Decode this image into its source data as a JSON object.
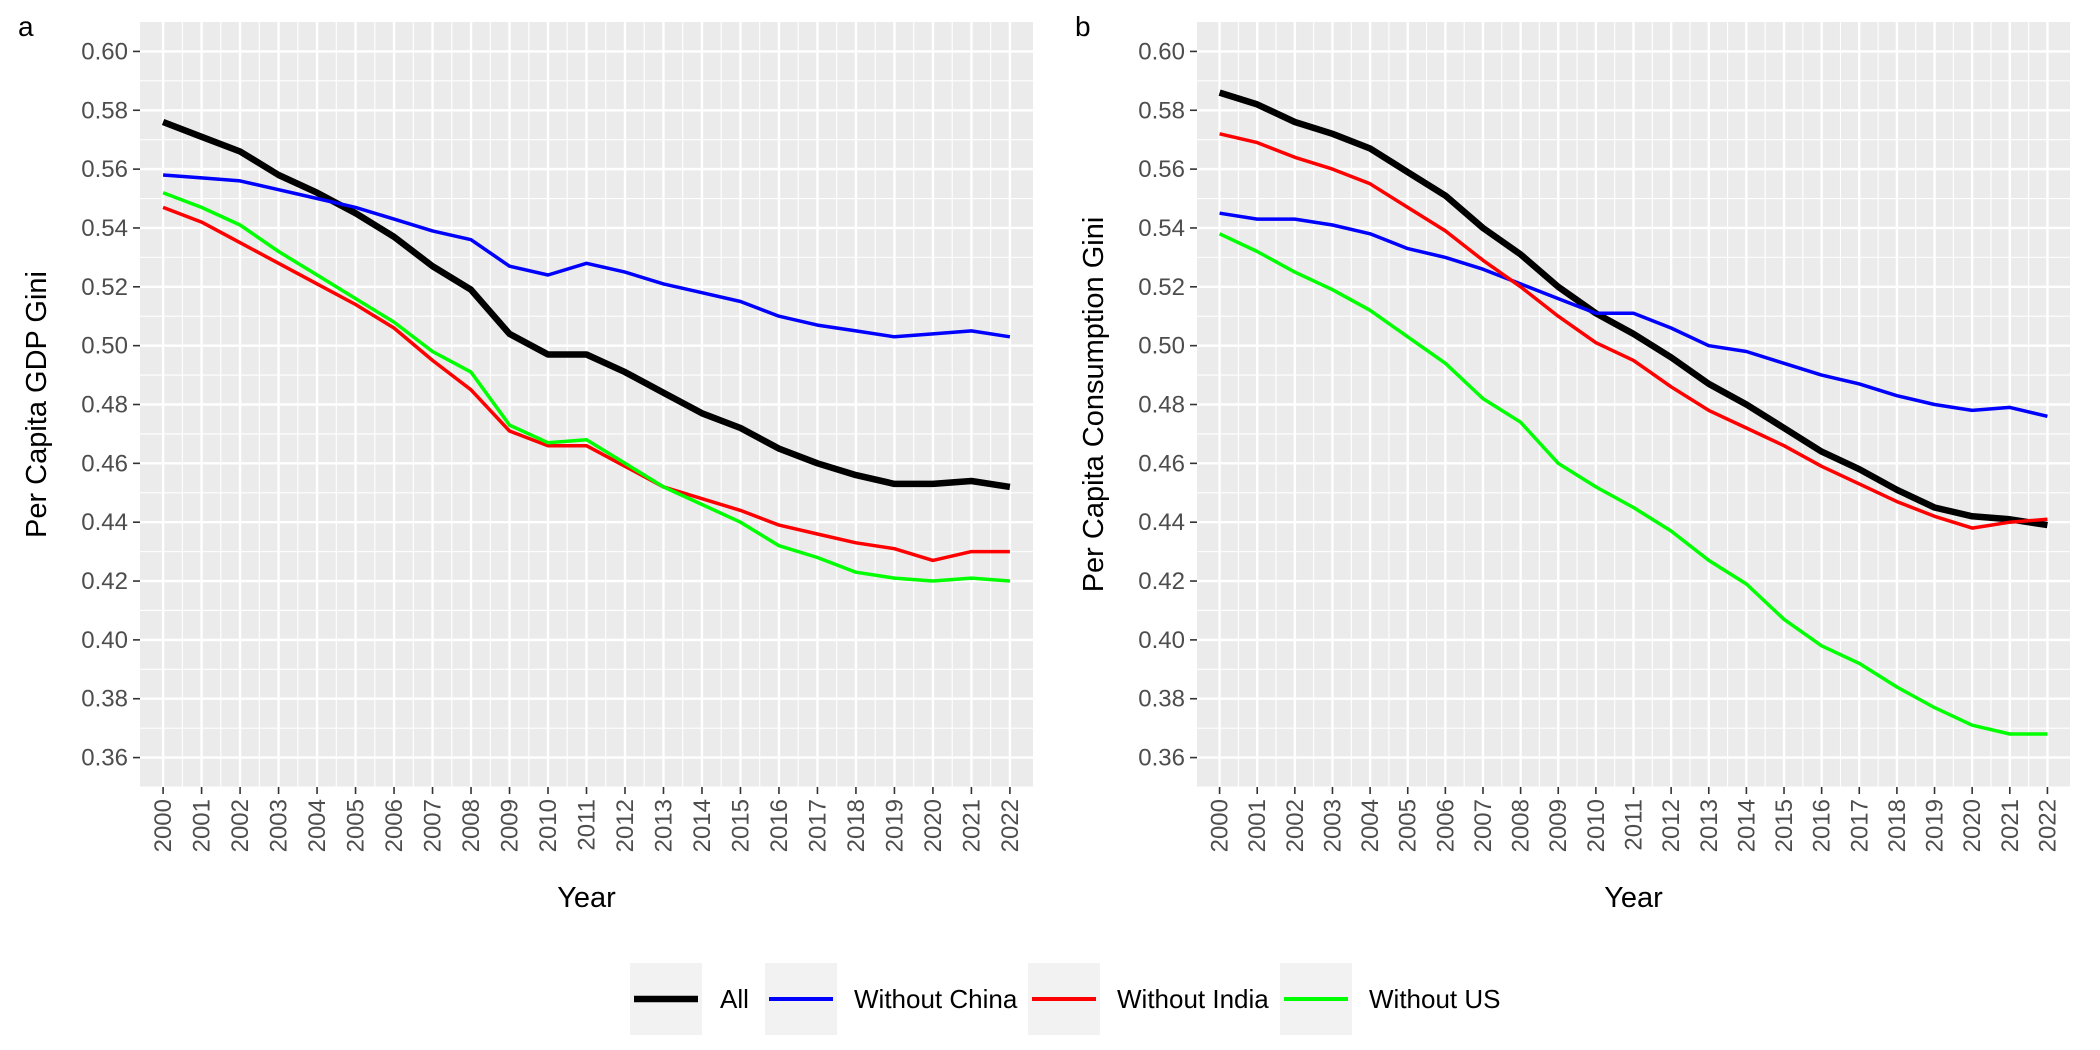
{
  "chart_data": [
    {
      "type": "line",
      "panel_tag": "a",
      "xlabel": "Year",
      "ylabel": "Per Capita GDP Gini",
      "ylim": [
        0.35,
        0.61
      ],
      "yticks": [
        "0.36",
        "0.38",
        "0.40",
        "0.42",
        "0.44",
        "0.46",
        "0.48",
        "0.50",
        "0.52",
        "0.54",
        "0.56",
        "0.58",
        "0.60"
      ],
      "categories": [
        "2000",
        "2001",
        "2002",
        "2003",
        "2004",
        "2005",
        "2006",
        "2007",
        "2008",
        "2009",
        "2010",
        "2011",
        "2012",
        "2013",
        "2014",
        "2015",
        "2016",
        "2017",
        "2018",
        "2019",
        "2020",
        "2021",
        "2022"
      ],
      "series": [
        {
          "name": "All",
          "color": "#000000",
          "values": [
            0.576,
            0.571,
            0.566,
            0.558,
            0.552,
            0.545,
            0.537,
            0.527,
            0.519,
            0.504,
            0.497,
            0.497,
            0.491,
            0.484,
            0.477,
            0.472,
            0.465,
            0.46,
            0.456,
            0.453,
            0.453,
            0.454,
            0.452
          ]
        },
        {
          "name": "Without China",
          "color": "#0000ff",
          "values": [
            0.558,
            0.557,
            0.556,
            0.553,
            0.55,
            0.547,
            0.543,
            0.539,
            0.536,
            0.527,
            0.524,
            0.528,
            0.525,
            0.521,
            0.518,
            0.515,
            0.51,
            0.507,
            0.505,
            0.503,
            0.504,
            0.505,
            0.503
          ]
        },
        {
          "name": "Without India",
          "color": "#ff0000",
          "values": [
            0.547,
            0.542,
            0.535,
            0.528,
            0.521,
            0.514,
            0.506,
            0.495,
            0.485,
            0.471,
            0.466,
            0.466,
            0.459,
            0.452,
            0.448,
            0.444,
            0.439,
            0.436,
            0.433,
            0.431,
            0.427,
            0.43,
            0.43
          ]
        },
        {
          "name": "Without US",
          "color": "#00ff00",
          "values": [
            0.552,
            0.547,
            0.541,
            0.532,
            0.524,
            0.516,
            0.508,
            0.498,
            0.491,
            0.473,
            0.467,
            0.468,
            0.46,
            0.452,
            0.446,
            0.44,
            0.432,
            0.428,
            0.423,
            0.421,
            0.42,
            0.421,
            0.42
          ]
        }
      ]
    },
    {
      "type": "line",
      "panel_tag": "b",
      "xlabel": "Year",
      "ylabel": "Per Capita Consumption Gini",
      "ylim": [
        0.35,
        0.61
      ],
      "yticks": [
        "0.36",
        "0.38",
        "0.40",
        "0.42",
        "0.44",
        "0.46",
        "0.48",
        "0.50",
        "0.52",
        "0.54",
        "0.56",
        "0.58",
        "0.60"
      ],
      "categories": [
        "2000",
        "2001",
        "2002",
        "2003",
        "2004",
        "2005",
        "2006",
        "2007",
        "2008",
        "2009",
        "2010",
        "2011",
        "2012",
        "2013",
        "2014",
        "2015",
        "2016",
        "2017",
        "2018",
        "2019",
        "2020",
        "2021",
        "2022"
      ],
      "series": [
        {
          "name": "All",
          "color": "#000000",
          "values": [
            0.586,
            0.582,
            0.576,
            0.572,
            0.567,
            0.559,
            0.551,
            0.54,
            0.531,
            0.52,
            0.511,
            0.504,
            0.496,
            0.487,
            0.48,
            0.472,
            0.464,
            0.458,
            0.451,
            0.445,
            0.442,
            0.441,
            0.439
          ]
        },
        {
          "name": "Without China",
          "color": "#0000ff",
          "values": [
            0.545,
            0.543,
            0.543,
            0.541,
            0.538,
            0.533,
            0.53,
            0.526,
            0.521,
            0.516,
            0.511,
            0.511,
            0.506,
            0.5,
            0.498,
            0.494,
            0.49,
            0.487,
            0.483,
            0.48,
            0.478,
            0.479,
            0.476
          ]
        },
        {
          "name": "Without India",
          "color": "#ff0000",
          "values": [
            0.572,
            0.569,
            0.564,
            0.56,
            0.555,
            0.547,
            0.539,
            0.529,
            0.52,
            0.51,
            0.501,
            0.495,
            0.486,
            0.478,
            0.472,
            0.466,
            0.459,
            0.453,
            0.447,
            0.442,
            0.438,
            0.44,
            0.441
          ]
        },
        {
          "name": "Without US",
          "color": "#00ff00",
          "values": [
            0.538,
            0.532,
            0.525,
            0.519,
            0.512,
            0.503,
            0.494,
            0.482,
            0.474,
            0.46,
            0.452,
            0.445,
            0.437,
            0.427,
            0.419,
            0.407,
            0.398,
            0.392,
            0.384,
            0.377,
            0.371,
            0.368,
            0.368
          ]
        }
      ]
    }
  ],
  "legend": {
    "placement": "bottom",
    "entries": [
      {
        "name": "All",
        "color": "#000000"
      },
      {
        "name": "Without China",
        "color": "#0000ff"
      },
      {
        "name": "Without India",
        "color": "#ff0000"
      },
      {
        "name": "Without US",
        "color": "#00ff00"
      }
    ]
  }
}
